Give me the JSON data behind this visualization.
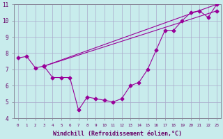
{
  "xlabel": "Windchill (Refroidissement éolien,°C)",
  "background_color": "#c8ecec",
  "grid_color": "#aaaacc",
  "line_color": "#990099",
  "xlim": [
    -0.5,
    23.5
  ],
  "ylim": [
    4,
    11
  ],
  "xticks": [
    0,
    1,
    2,
    3,
    4,
    5,
    6,
    7,
    8,
    9,
    10,
    11,
    12,
    13,
    14,
    15,
    16,
    17,
    18,
    19,
    20,
    21,
    22,
    23
  ],
  "yticks": [
    4,
    5,
    6,
    7,
    8,
    9,
    10,
    11
  ],
  "line1_x": [
    0,
    1,
    2,
    3,
    4,
    5,
    6,
    7,
    8,
    9,
    10,
    11,
    12,
    13,
    14,
    15,
    16,
    17,
    18,
    19,
    20,
    21,
    22,
    23
  ],
  "line1_y": [
    7.7,
    7.8,
    7.1,
    7.2,
    6.5,
    6.5,
    6.5,
    4.5,
    5.3,
    5.2,
    5.1,
    5.0,
    5.2,
    6.0,
    6.2,
    7.0,
    8.2,
    9.4,
    9.4,
    10.0,
    10.5,
    10.6,
    10.2,
    11.0
  ],
  "line2_x": [
    3,
    23
  ],
  "line2_y": [
    7.2,
    11.0
  ],
  "line3_x": [
    3,
    23
  ],
  "line3_y": [
    7.2,
    10.6
  ],
  "marker": "D",
  "markersize": 2.5,
  "linewidth": 0.8,
  "tick_fontsize": 5.0,
  "label_fontsize": 6.0
}
